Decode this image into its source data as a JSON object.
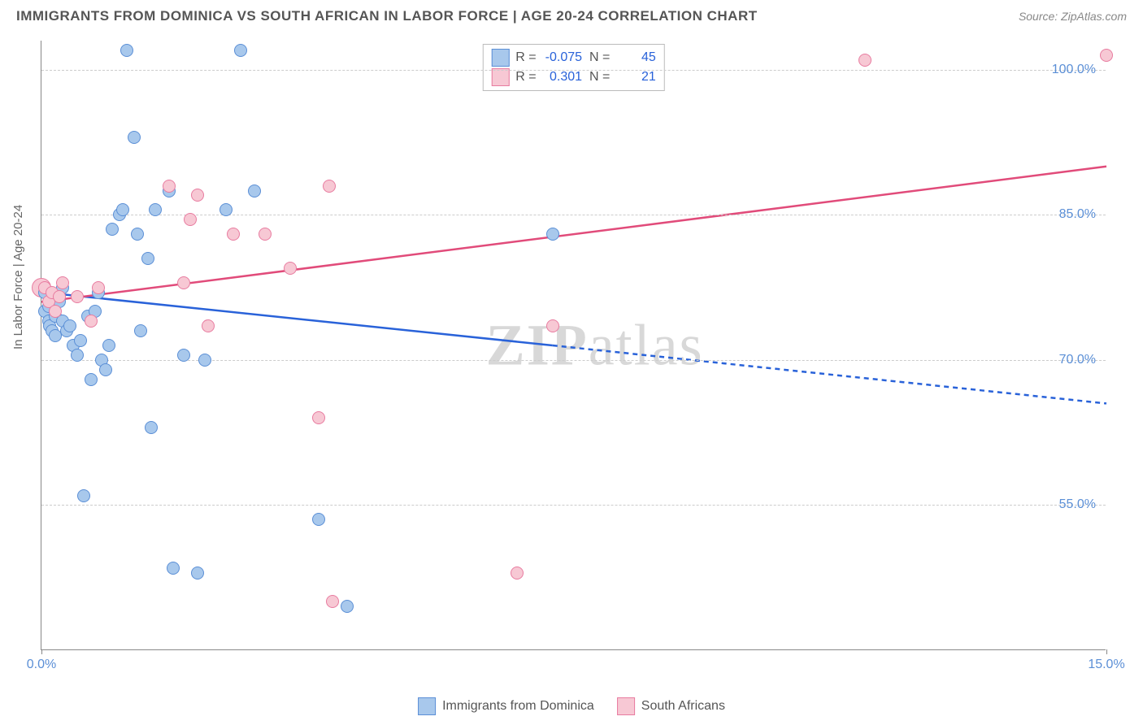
{
  "header": {
    "title": "IMMIGRANTS FROM DOMINICA VS SOUTH AFRICAN IN LABOR FORCE | AGE 20-24 CORRELATION CHART",
    "source": "Source: ZipAtlas.com"
  },
  "watermark": {
    "prefix": "ZIP",
    "suffix": "atlas"
  },
  "chart": {
    "type": "scatter-with-regression",
    "ylabel": "In Labor Force | Age 20-24",
    "background_color": "#ffffff",
    "grid_color": "#cccccc",
    "axis_color": "#888888",
    "xlim": [
      0,
      15
    ],
    "ylim": [
      40,
      103
    ],
    "x_ticks": [
      {
        "value": 0,
        "label": "0.0%"
      },
      {
        "value": 15,
        "label": "15.0%"
      }
    ],
    "y_gridlines": [
      {
        "value": 55,
        "label": "55.0%"
      },
      {
        "value": 70,
        "label": "70.0%"
      },
      {
        "value": 85,
        "label": "85.0%"
      },
      {
        "value": 100,
        "label": "100.0%"
      }
    ],
    "series": {
      "blue": {
        "label": "Immigrants from Dominica",
        "fill": "#a8c8ec",
        "stroke": "#5b8fd6",
        "line_color": "#2962d9",
        "R": "-0.075",
        "N": "45",
        "points": [
          [
            0.05,
            77
          ],
          [
            0.05,
            75
          ],
          [
            0.1,
            75.5
          ],
          [
            0.1,
            74
          ],
          [
            0.12,
            73.5
          ],
          [
            0.15,
            73
          ],
          [
            0.2,
            74.5
          ],
          [
            0.2,
            72.5
          ],
          [
            0.25,
            76
          ],
          [
            0.3,
            77.5
          ],
          [
            0.3,
            74
          ],
          [
            0.35,
            73
          ],
          [
            0.4,
            73.5
          ],
          [
            0.45,
            71.5
          ],
          [
            0.5,
            70.5
          ],
          [
            0.55,
            72
          ],
          [
            0.6,
            56
          ],
          [
            0.65,
            74.5
          ],
          [
            0.7,
            68
          ],
          [
            0.75,
            75
          ],
          [
            0.8,
            77
          ],
          [
            0.85,
            70
          ],
          [
            0.9,
            69
          ],
          [
            0.95,
            71.5
          ],
          [
            1.0,
            83.5
          ],
          [
            1.1,
            85
          ],
          [
            1.15,
            85.5
          ],
          [
            1.2,
            102
          ],
          [
            1.3,
            93
          ],
          [
            1.35,
            83
          ],
          [
            1.4,
            73
          ],
          [
            1.5,
            80.5
          ],
          [
            1.55,
            63
          ],
          [
            1.6,
            85.5
          ],
          [
            1.8,
            87.5
          ],
          [
            1.85,
            48.5
          ],
          [
            2.0,
            70.5
          ],
          [
            2.2,
            48
          ],
          [
            2.3,
            70
          ],
          [
            2.6,
            85.5
          ],
          [
            2.8,
            102
          ],
          [
            3.0,
            87.5
          ],
          [
            3.9,
            53.5
          ],
          [
            4.3,
            44.5
          ],
          [
            7.2,
            83
          ]
        ],
        "regression": {
          "x1": 0,
          "y1": 77,
          "x2_solid": 7.2,
          "y2_solid": 71.5,
          "x2_dashed": 15,
          "y2_dashed": 65.5
        }
      },
      "pink": {
        "label": "South Africans",
        "fill": "#f7c8d4",
        "stroke": "#e87ca0",
        "line_color": "#e14b7a",
        "R": "0.301",
        "N": "21",
        "points": [
          [
            0.05,
            77.5
          ],
          [
            0.1,
            76
          ],
          [
            0.15,
            77
          ],
          [
            0.2,
            75
          ],
          [
            0.25,
            76.5
          ],
          [
            0.3,
            78
          ],
          [
            0.5,
            76.5
          ],
          [
            0.7,
            74
          ],
          [
            0.8,
            77.5
          ],
          [
            1.8,
            88
          ],
          [
            2.0,
            78
          ],
          [
            2.1,
            84.5
          ],
          [
            2.2,
            87
          ],
          [
            2.35,
            73.5
          ],
          [
            2.7,
            83
          ],
          [
            3.15,
            83
          ],
          [
            3.5,
            79.5
          ],
          [
            3.9,
            64
          ],
          [
            4.05,
            88
          ],
          [
            4.1,
            45
          ],
          [
            6.7,
            48
          ],
          [
            7.2,
            73.5
          ],
          [
            11.6,
            101
          ],
          [
            15.0,
            101.5
          ]
        ],
        "points_large": [
          [
            0.0,
            77.5
          ]
        ],
        "regression": {
          "x1": 0,
          "y1": 76,
          "x2_solid": 15,
          "y2_solid": 90
        }
      }
    }
  },
  "legend_stats": [
    {
      "swatch_fill": "#a8c8ec",
      "swatch_stroke": "#5b8fd6",
      "R": "-0.075",
      "N": "45"
    },
    {
      "swatch_fill": "#f7c8d4",
      "swatch_stroke": "#e87ca0",
      "R": "0.301",
      "N": "21"
    }
  ],
  "legend_bottom": [
    {
      "swatch_fill": "#a8c8ec",
      "swatch_stroke": "#5b8fd6",
      "label": "Immigrants from Dominica"
    },
    {
      "swatch_fill": "#f7c8d4",
      "swatch_stroke": "#e87ca0",
      "label": "South Africans"
    }
  ]
}
